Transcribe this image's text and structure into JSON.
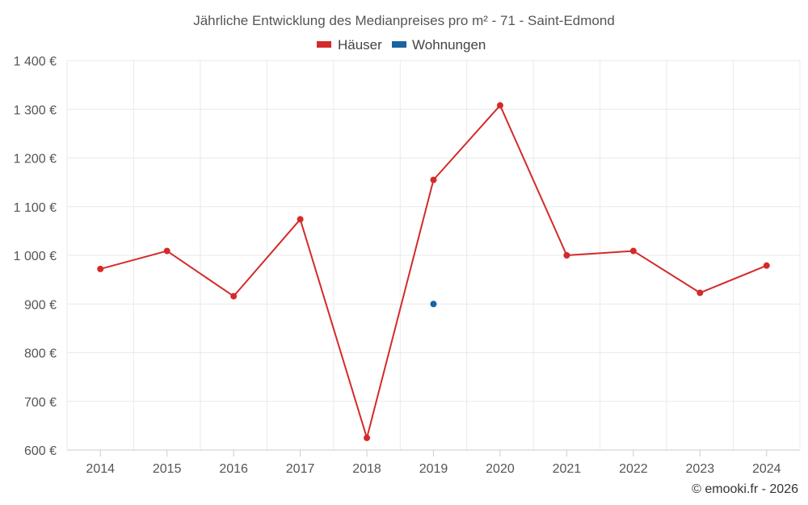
{
  "chart_data": {
    "type": "line",
    "title": "Jährliche Entwicklung des Medianpreises pro m² - 71 - Saint-Edmond",
    "categories": [
      "2014",
      "2015",
      "2016",
      "2017",
      "2018",
      "2019",
      "2020",
      "2021",
      "2022",
      "2023",
      "2024"
    ],
    "series": [
      {
        "name": "Häuser",
        "color": "#d42a2a",
        "values": [
          972,
          1009,
          916,
          1074,
          625,
          1155,
          1308,
          1000,
          1009,
          923,
          979
        ]
      },
      {
        "name": "Wohnungen",
        "color": "#1a63a0",
        "values": [
          null,
          null,
          null,
          null,
          null,
          900,
          null,
          null,
          null,
          null,
          null
        ]
      }
    ],
    "ylim": [
      600,
      1400
    ],
    "yticks": [
      {
        "value": 600,
        "label": "600 €"
      },
      {
        "value": 700,
        "label": "700 €"
      },
      {
        "value": 800,
        "label": "800 €"
      },
      {
        "value": 900,
        "label": "900 €"
      },
      {
        "value": 1000,
        "label": "1 000 €"
      },
      {
        "value": 1100,
        "label": "1 100 €"
      },
      {
        "value": 1200,
        "label": "1 200 €"
      },
      {
        "value": 1300,
        "label": "1 300 €"
      },
      {
        "value": 1400,
        "label": "1 400 €"
      }
    ],
    "grid": true,
    "legend_position": "top-center",
    "credit": "© emooki.fr - 2026"
  }
}
